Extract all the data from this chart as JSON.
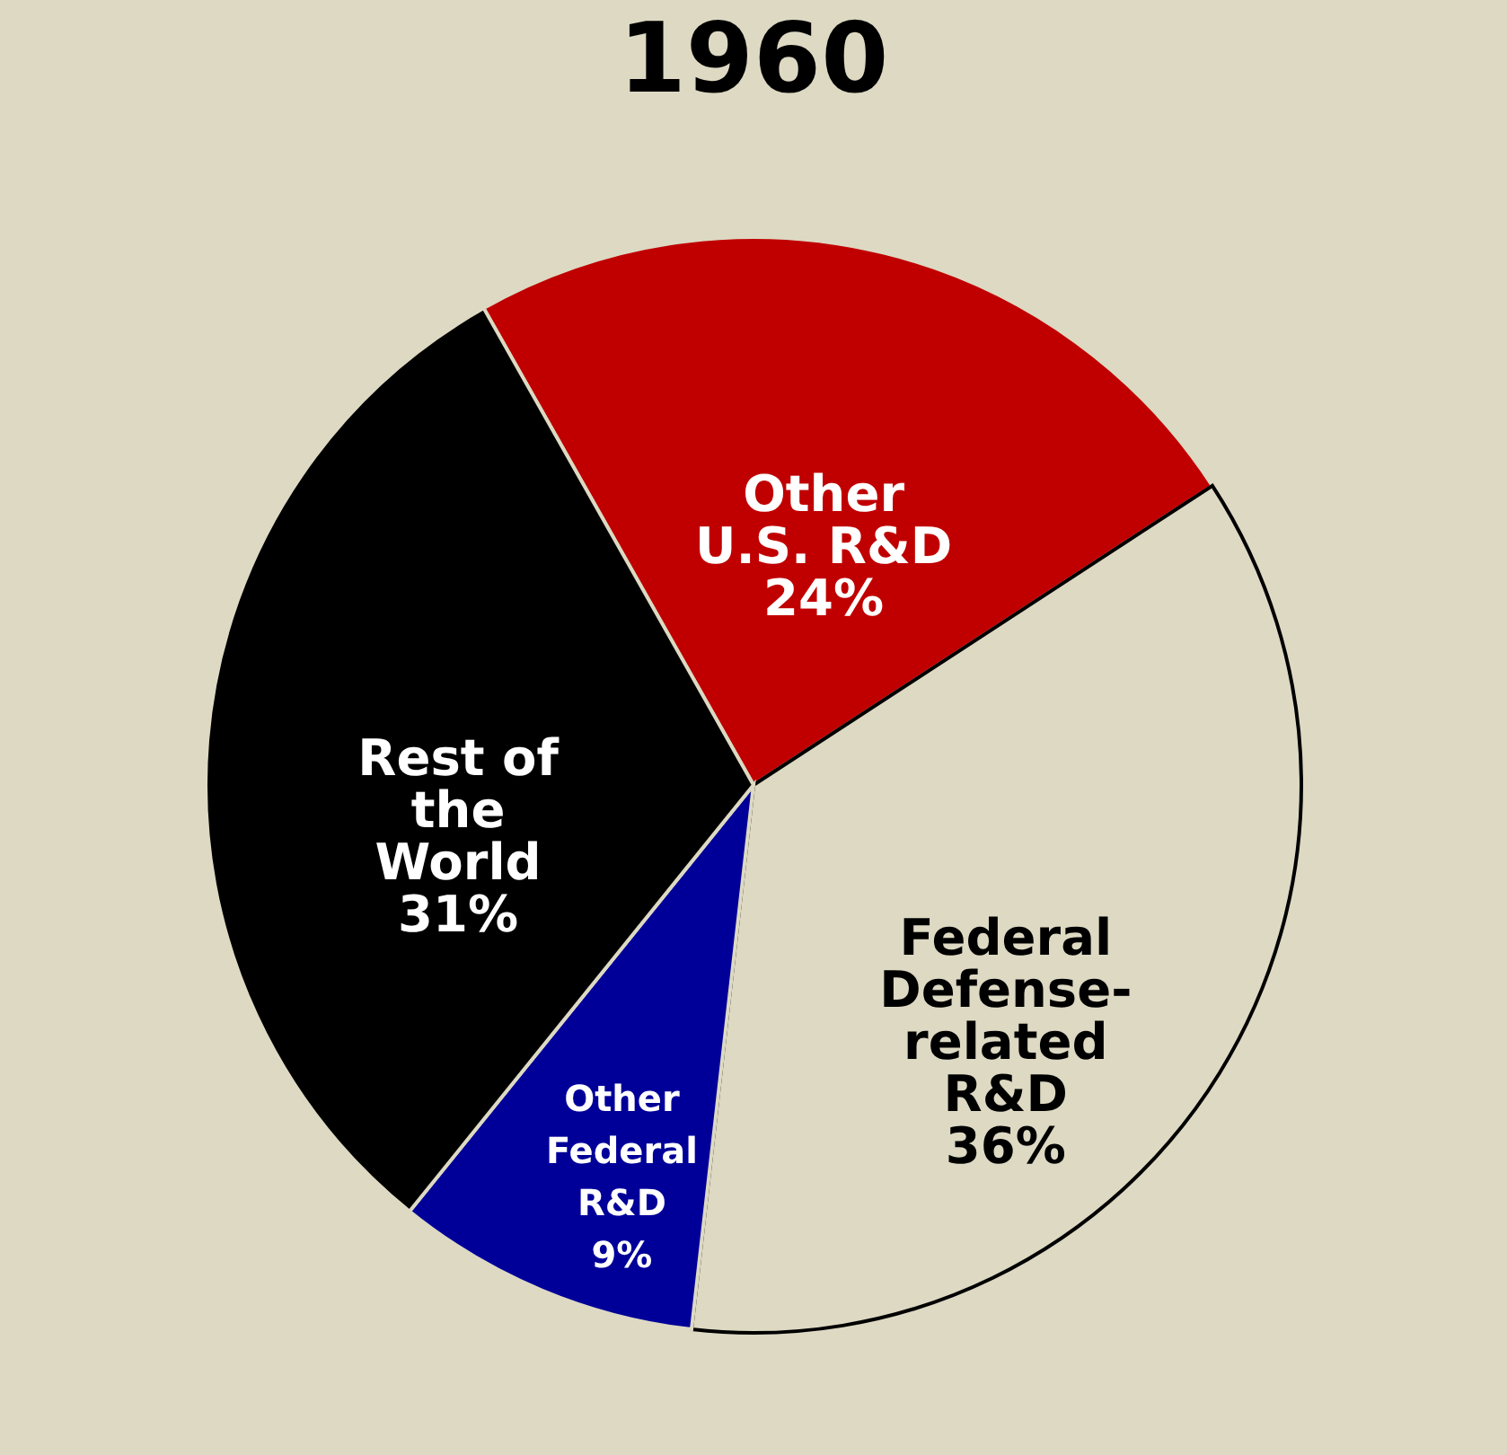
{
  "chart_data": {
    "type": "pie",
    "title": "1960",
    "categories": [
      "Other U.S. R&D",
      "Federal Defense-related R&D",
      "Other Federal R&D",
      "Rest of the World"
    ],
    "values": [
      24,
      36,
      9,
      31
    ],
    "colors": [
      "#c00000",
      "#ddd9c3",
      "#000099",
      "#000000"
    ],
    "value_labels": [
      "24%",
      "36%",
      "9%",
      "31%"
    ],
    "legend": false
  }
}
